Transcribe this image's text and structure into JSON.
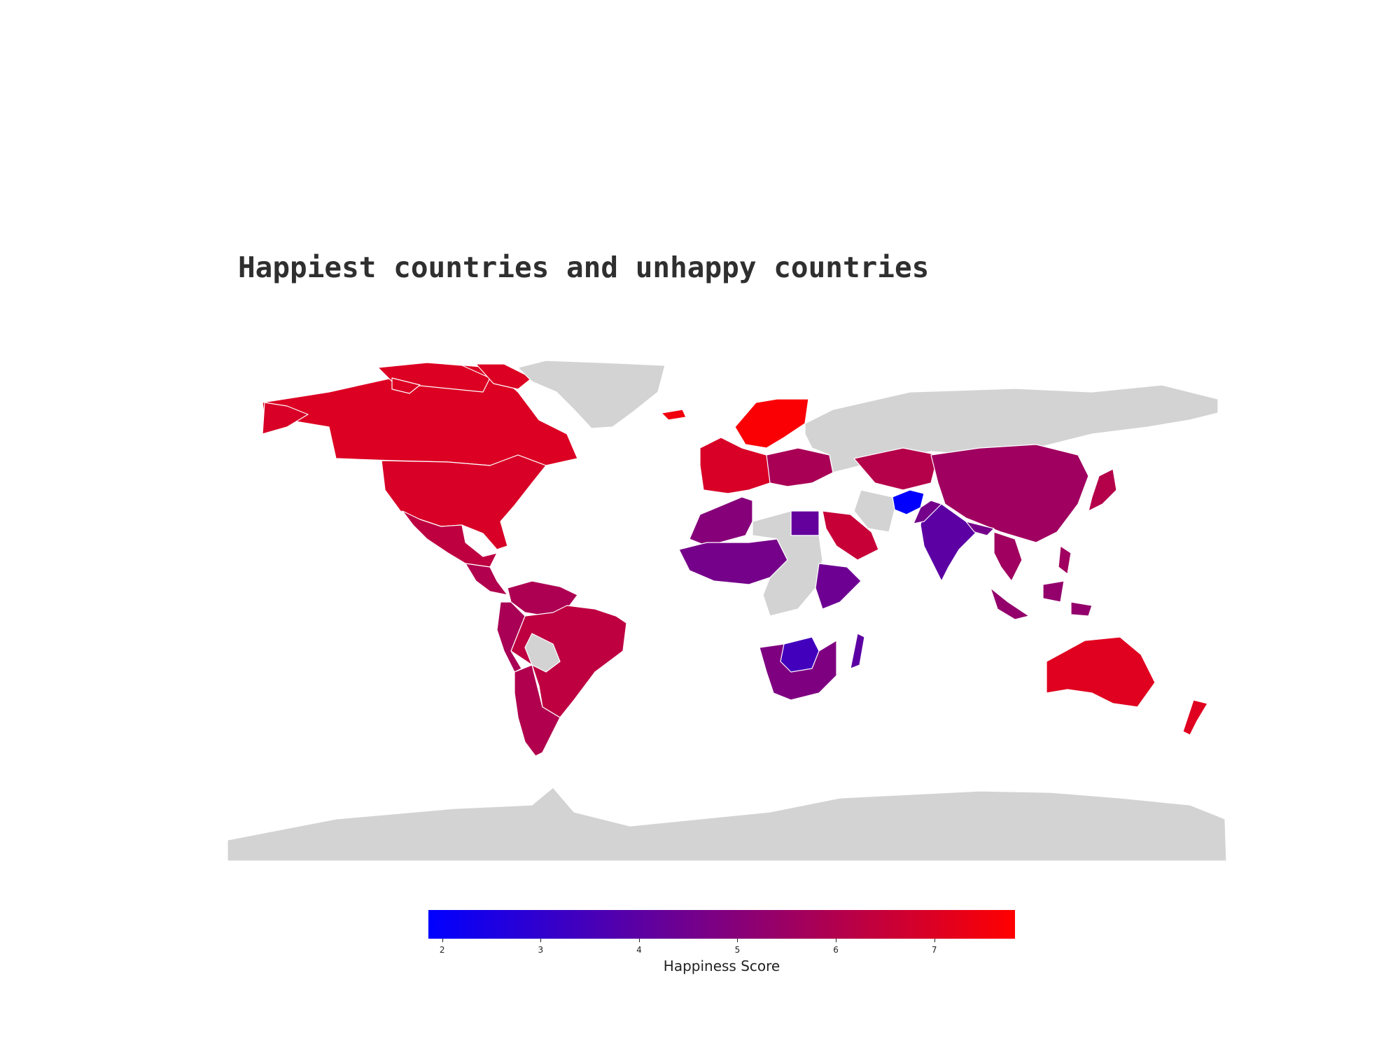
{
  "title": "Happiest countries and unhappy countries",
  "legend": {
    "label": "Happiness Score",
    "ticks": [
      "2",
      "3",
      "4",
      "5",
      "6",
      "7"
    ],
    "tick_values": [
      2,
      3,
      4,
      5,
      6,
      7
    ],
    "range": [
      1.86,
      7.82
    ],
    "color_low": "#0000ff",
    "color_high": "#ff0000"
  },
  "map": {
    "projection": "equirectangular",
    "no_data_color": "#d3d3d3",
    "border_color": "#ffffff",
    "regions": [
      {
        "name": "Canada",
        "score": 7.0
      },
      {
        "name": "Greenland",
        "score": null
      },
      {
        "name": "United States",
        "score": 6.9
      },
      {
        "name": "Mexico",
        "score": 6.3
      },
      {
        "name": "Central America",
        "score": 6.0
      },
      {
        "name": "Colombia / Venezuela",
        "score": 5.9
      },
      {
        "name": "Brazil",
        "score": 6.3
      },
      {
        "name": "Peru / Ecuador",
        "score": 5.8
      },
      {
        "name": "Bolivia",
        "score": null
      },
      {
        "name": "Argentina / Chile",
        "score": 6.0
      },
      {
        "name": "Iceland",
        "score": 7.5
      },
      {
        "name": "Nordic countries",
        "score": 7.7
      },
      {
        "name": "Western Europe",
        "score": 6.9
      },
      {
        "name": "Eastern Europe",
        "score": 5.8
      },
      {
        "name": "Russia",
        "score": null
      },
      {
        "name": "Central Asia",
        "score": 6.1
      },
      {
        "name": "China / Mongolia",
        "score": 5.6
      },
      {
        "name": "Japan",
        "score": 6.1
      },
      {
        "name": "Afghanistan",
        "score": 1.9
      },
      {
        "name": "India",
        "score": 4.0
      },
      {
        "name": "Pakistan / Nepal",
        "score": 4.6
      },
      {
        "name": "Iran",
        "score": null
      },
      {
        "name": "Saudi Arabia",
        "score": 6.5
      },
      {
        "name": "Egypt",
        "score": 4.2
      },
      {
        "name": "North Africa",
        "score": 5.0
      },
      {
        "name": "West Africa",
        "score": 4.6
      },
      {
        "name": "Central Africa",
        "score": null
      },
      {
        "name": "Ethiopia / Kenya",
        "score": 4.4
      },
      {
        "name": "Southern Africa",
        "score": 4.8
      },
      {
        "name": "Zimbabwe / Botswana",
        "score": 3.4
      },
      {
        "name": "Madagascar",
        "score": 4.0
      },
      {
        "name": "Southeast Asia",
        "score": 5.6
      },
      {
        "name": "Indonesia",
        "score": 5.3
      },
      {
        "name": "Australia",
        "score": 7.1
      },
      {
        "name": "New Zealand",
        "score": 7.1
      },
      {
        "name": "Antarctica",
        "score": null
      }
    ]
  }
}
